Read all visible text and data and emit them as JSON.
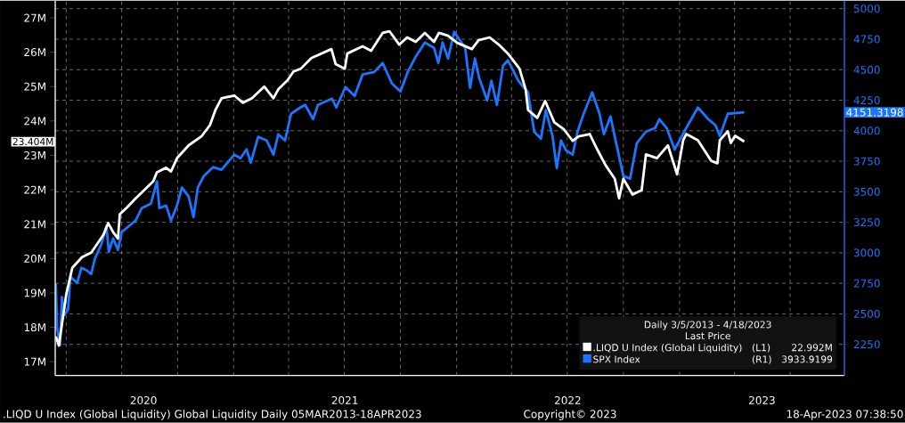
{
  "chart_data": {
    "type": "line",
    "legend_title": "Daily 3/5/2013 - 4/18/2023",
    "annotations": [
      ".LIQD U Index (Global Liquidity) Global Liquidity  Daily 05MAR2013-18APR2023",
      "Copyright© 2023",
      "18-Apr-2023 07:38:50",
      "Last Price",
      "(L1)",
      "22.992M",
      "(R1)",
      "3933.9199",
      "23.404M",
      "4151.3198"
    ],
    "xlim": [
      "2020-03-14",
      "2023-09-28"
    ],
    "xticks": [
      {
        "value": "2020-04-01",
        "label": null
      },
      {
        "value": "2020-07-01",
        "label": null
      },
      {
        "value": "2020-10-01",
        "label": null
      },
      {
        "value": "2021-01-01",
        "label": null
      },
      {
        "value": "2021-04-01",
        "label": null
      },
      {
        "value": "2021-07-01",
        "label": null
      },
      {
        "value": "2021-10-01",
        "label": null
      },
      {
        "value": "2022-01-01",
        "label": null
      },
      {
        "value": "2022-04-01",
        "label": null
      },
      {
        "value": "2022-07-01",
        "label": null
      },
      {
        "value": "2022-10-01",
        "label": null
      },
      {
        "value": "2023-01-01",
        "label": null
      },
      {
        "value": "2023-04-01",
        "label": null
      },
      {
        "value": "2023-07-01",
        "label": null
      },
      {
        "value": "2020-08-06",
        "label": "2020"
      },
      {
        "value": "2021-07-02",
        "label": "2021"
      },
      {
        "value": "2022-07-02",
        "label": "2022"
      },
      {
        "value": "2023-05-16",
        "label": "2023"
      }
    ],
    "ylim": [
      16.6,
      27.5
    ],
    "yticks": [
      {
        "value": 17,
        "label": "17M"
      },
      {
        "value": 18,
        "label": "18M"
      },
      {
        "value": 19,
        "label": "19M"
      },
      {
        "value": 20,
        "label": "20M"
      },
      {
        "value": 21,
        "label": "21M"
      },
      {
        "value": 22,
        "label": "22M"
      },
      {
        "value": 23,
        "label": "23M"
      },
      {
        "value": 24,
        "label": "24M"
      },
      {
        "value": 25,
        "label": "25M"
      },
      {
        "value": 26,
        "label": "26M"
      },
      {
        "value": 27,
        "label": "27M"
      }
    ],
    "y2lim": [
      1995,
      5066
    ],
    "y2ticks": [
      2250,
      2500,
      2750,
      3000,
      3250,
      3500,
      3750,
      4000,
      4250,
      4500,
      4750,
      5000
    ],
    "grid": true,
    "legend": "bottom right",
    "series": [
      {
        "name": ".LIQD U Index (Global Liquidity)",
        "color": "#ffffff",
        "x": [
          "2020-03-15",
          "2020-03-20",
          "2020-04-01",
          "2020-04-11",
          "2020-04-27",
          "2020-05-12",
          "2020-05-22",
          "2020-06-01",
          "2020-06-09",
          "2020-06-17",
          "2020-06-25",
          "2020-06-28",
          "2020-07-09",
          "2020-07-24",
          "2020-08-07",
          "2020-08-22",
          "2020-08-28",
          "2020-09-12",
          "2020-09-20",
          "2020-09-30",
          "2020-10-19",
          "2020-11-09",
          "2020-11-23",
          "2020-12-02",
          "2020-12-12",
          "2021-01-02",
          "2021-01-16",
          "2021-01-31",
          "2021-02-20",
          "2021-03-07",
          "2021-03-15",
          "2021-03-30",
          "2021-04-09",
          "2021-04-21",
          "2021-05-08",
          "2021-06-10",
          "2021-06-17",
          "2021-07-02",
          "2021-07-06",
          "2021-07-31",
          "2021-08-14",
          "2021-09-02",
          "2021-09-13",
          "2021-09-29",
          "2021-10-12",
          "2021-10-26",
          "2021-11-10",
          "2021-11-25",
          "2021-12-03",
          "2021-12-18",
          "2022-01-02",
          "2022-01-26",
          "2022-02-06",
          "2022-02-24",
          "2022-03-11",
          "2022-03-26",
          "2022-04-14",
          "2022-04-24",
          "2022-04-28",
          "2022-05-13",
          "2022-05-26",
          "2022-06-10",
          "2022-06-26",
          "2022-07-10",
          "2022-07-20",
          "2022-08-07",
          "2022-08-19",
          "2022-09-02",
          "2022-09-17",
          "2022-09-24",
          "2022-10-01",
          "2022-10-16",
          "2022-10-31",
          "2022-11-07",
          "2022-11-25",
          "2022-12-13",
          "2022-12-28",
          "2023-01-07",
          "2023-01-12",
          "2023-01-31",
          "2023-02-22",
          "2023-03-04",
          "2023-03-08",
          "2023-03-21",
          "2023-03-26",
          "2023-04-02",
          "2023-04-17"
        ],
        "values": [
          17.73,
          17.47,
          18.95,
          19.73,
          20.04,
          20.17,
          20.43,
          20.69,
          21.03,
          20.77,
          20.58,
          21.29,
          21.47,
          21.75,
          21.99,
          22.25,
          22.51,
          22.64,
          22.53,
          22.92,
          23.29,
          23.55,
          23.88,
          24.32,
          24.66,
          24.74,
          24.53,
          24.66,
          25.0,
          24.66,
          24.92,
          25.18,
          25.44,
          25.52,
          25.83,
          26.09,
          25.65,
          25.52,
          25.96,
          26.17,
          26.04,
          26.56,
          26.61,
          26.22,
          26.43,
          26.3,
          26.56,
          26.3,
          26.56,
          26.48,
          26.27,
          26.09,
          26.35,
          26.43,
          26.22,
          25.96,
          25.52,
          24.92,
          24.32,
          24.09,
          24.58,
          23.96,
          23.75,
          23.42,
          23.55,
          23.62,
          23.18,
          22.71,
          22.32,
          21.75,
          22.32,
          21.86,
          21.99,
          23.03,
          22.92,
          23.29,
          22.45,
          23.44,
          23.62,
          23.44,
          22.84,
          22.77,
          23.44,
          23.7,
          23.36,
          23.57,
          23.4
        ]
      },
      {
        "name": "SPX Index",
        "color": "#1a75ff",
        "axis": "y2",
        "x": [
          "2020-03-15",
          "2020-03-17",
          "2020-03-22",
          "2020-03-25",
          "2020-03-29",
          "2020-04-04",
          "2020-04-08",
          "2020-04-19",
          "2020-04-26",
          "2020-05-05",
          "2020-05-12",
          "2020-05-18",
          "2020-05-29",
          "2020-06-06",
          "2020-06-10",
          "2020-06-17",
          "2020-06-25",
          "2020-07-01",
          "2020-07-15",
          "2020-07-24",
          "2020-08-03",
          "2020-08-18",
          "2020-08-28",
          "2020-09-01",
          "2020-09-12",
          "2020-09-20",
          "2020-09-30",
          "2020-10-08",
          "2020-10-19",
          "2020-10-27",
          "2020-11-03",
          "2020-11-13",
          "2020-11-28",
          "2020-12-12",
          "2021-01-02",
          "2021-01-12",
          "2021-01-22",
          "2021-01-29",
          "2021-02-10",
          "2021-02-24",
          "2021-03-07",
          "2021-03-15",
          "2021-03-26",
          "2021-04-05",
          "2021-04-20",
          "2021-04-28",
          "2021-05-11",
          "2021-05-19",
          "2021-06-11",
          "2021-06-18",
          "2021-07-03",
          "2021-07-18",
          "2021-07-31",
          "2021-08-19",
          "2021-09-02",
          "2021-09-17",
          "2021-10-01",
          "2021-10-13",
          "2021-10-26",
          "2021-11-10",
          "2021-11-25",
          "2021-12-02",
          "2021-12-09",
          "2021-12-18",
          "2021-12-28",
          "2022-01-05",
          "2022-01-15",
          "2022-01-23",
          "2022-01-31",
          "2022-02-07",
          "2022-02-20",
          "2022-02-27",
          "2022-03-08",
          "2022-03-18",
          "2022-03-26",
          "2022-04-12",
          "2022-04-28",
          "2022-05-08",
          "2022-05-19",
          "2022-05-27",
          "2022-06-07",
          "2022-06-14",
          "2022-06-21",
          "2022-06-29",
          "2022-07-10",
          "2022-07-18",
          "2022-07-28",
          "2022-08-11",
          "2022-08-23",
          "2022-08-30",
          "2022-09-10",
          "2022-09-17",
          "2022-10-01",
          "2022-10-12",
          "2022-10-23",
          "2022-11-07",
          "2022-11-22",
          "2022-11-29",
          "2022-12-11",
          "2022-12-24",
          "2023-01-12",
          "2023-01-31",
          "2023-02-17",
          "2023-03-01",
          "2023-03-08",
          "2023-03-21",
          "2023-04-17"
        ],
        "values": [
          2746,
          2389,
          2243,
          2637,
          2491,
          2534,
          2804,
          2753,
          2877,
          2855,
          2826,
          2950,
          3074,
          3220,
          3009,
          3118,
          3023,
          3169,
          3227,
          3264,
          3366,
          3402,
          3585,
          3366,
          3388,
          3264,
          3388,
          3534,
          3461,
          3293,
          3534,
          3629,
          3702,
          3680,
          3804,
          3774,
          3847,
          3738,
          3950,
          3920,
          3804,
          3971,
          3920,
          4139,
          4190,
          4212,
          4095,
          4212,
          4263,
          4190,
          4358,
          4285,
          4460,
          4481,
          4555,
          4387,
          4321,
          4481,
          4606,
          4723,
          4679,
          4555,
          4723,
          4591,
          4810,
          4752,
          4679,
          4351,
          4591,
          4431,
          4249,
          4409,
          4212,
          4533,
          4577,
          4409,
          4314,
          3993,
          3935,
          4168,
          3957,
          3694,
          3920,
          3840,
          3804,
          3993,
          4139,
          4314,
          4139,
          3971,
          4117,
          3950,
          3629,
          3607,
          3898,
          3993,
          4022,
          4095,
          4022,
          3847,
          4022,
          4190,
          4095,
          4044,
          3957,
          4139,
          4151
        ]
      }
    ]
  }
}
